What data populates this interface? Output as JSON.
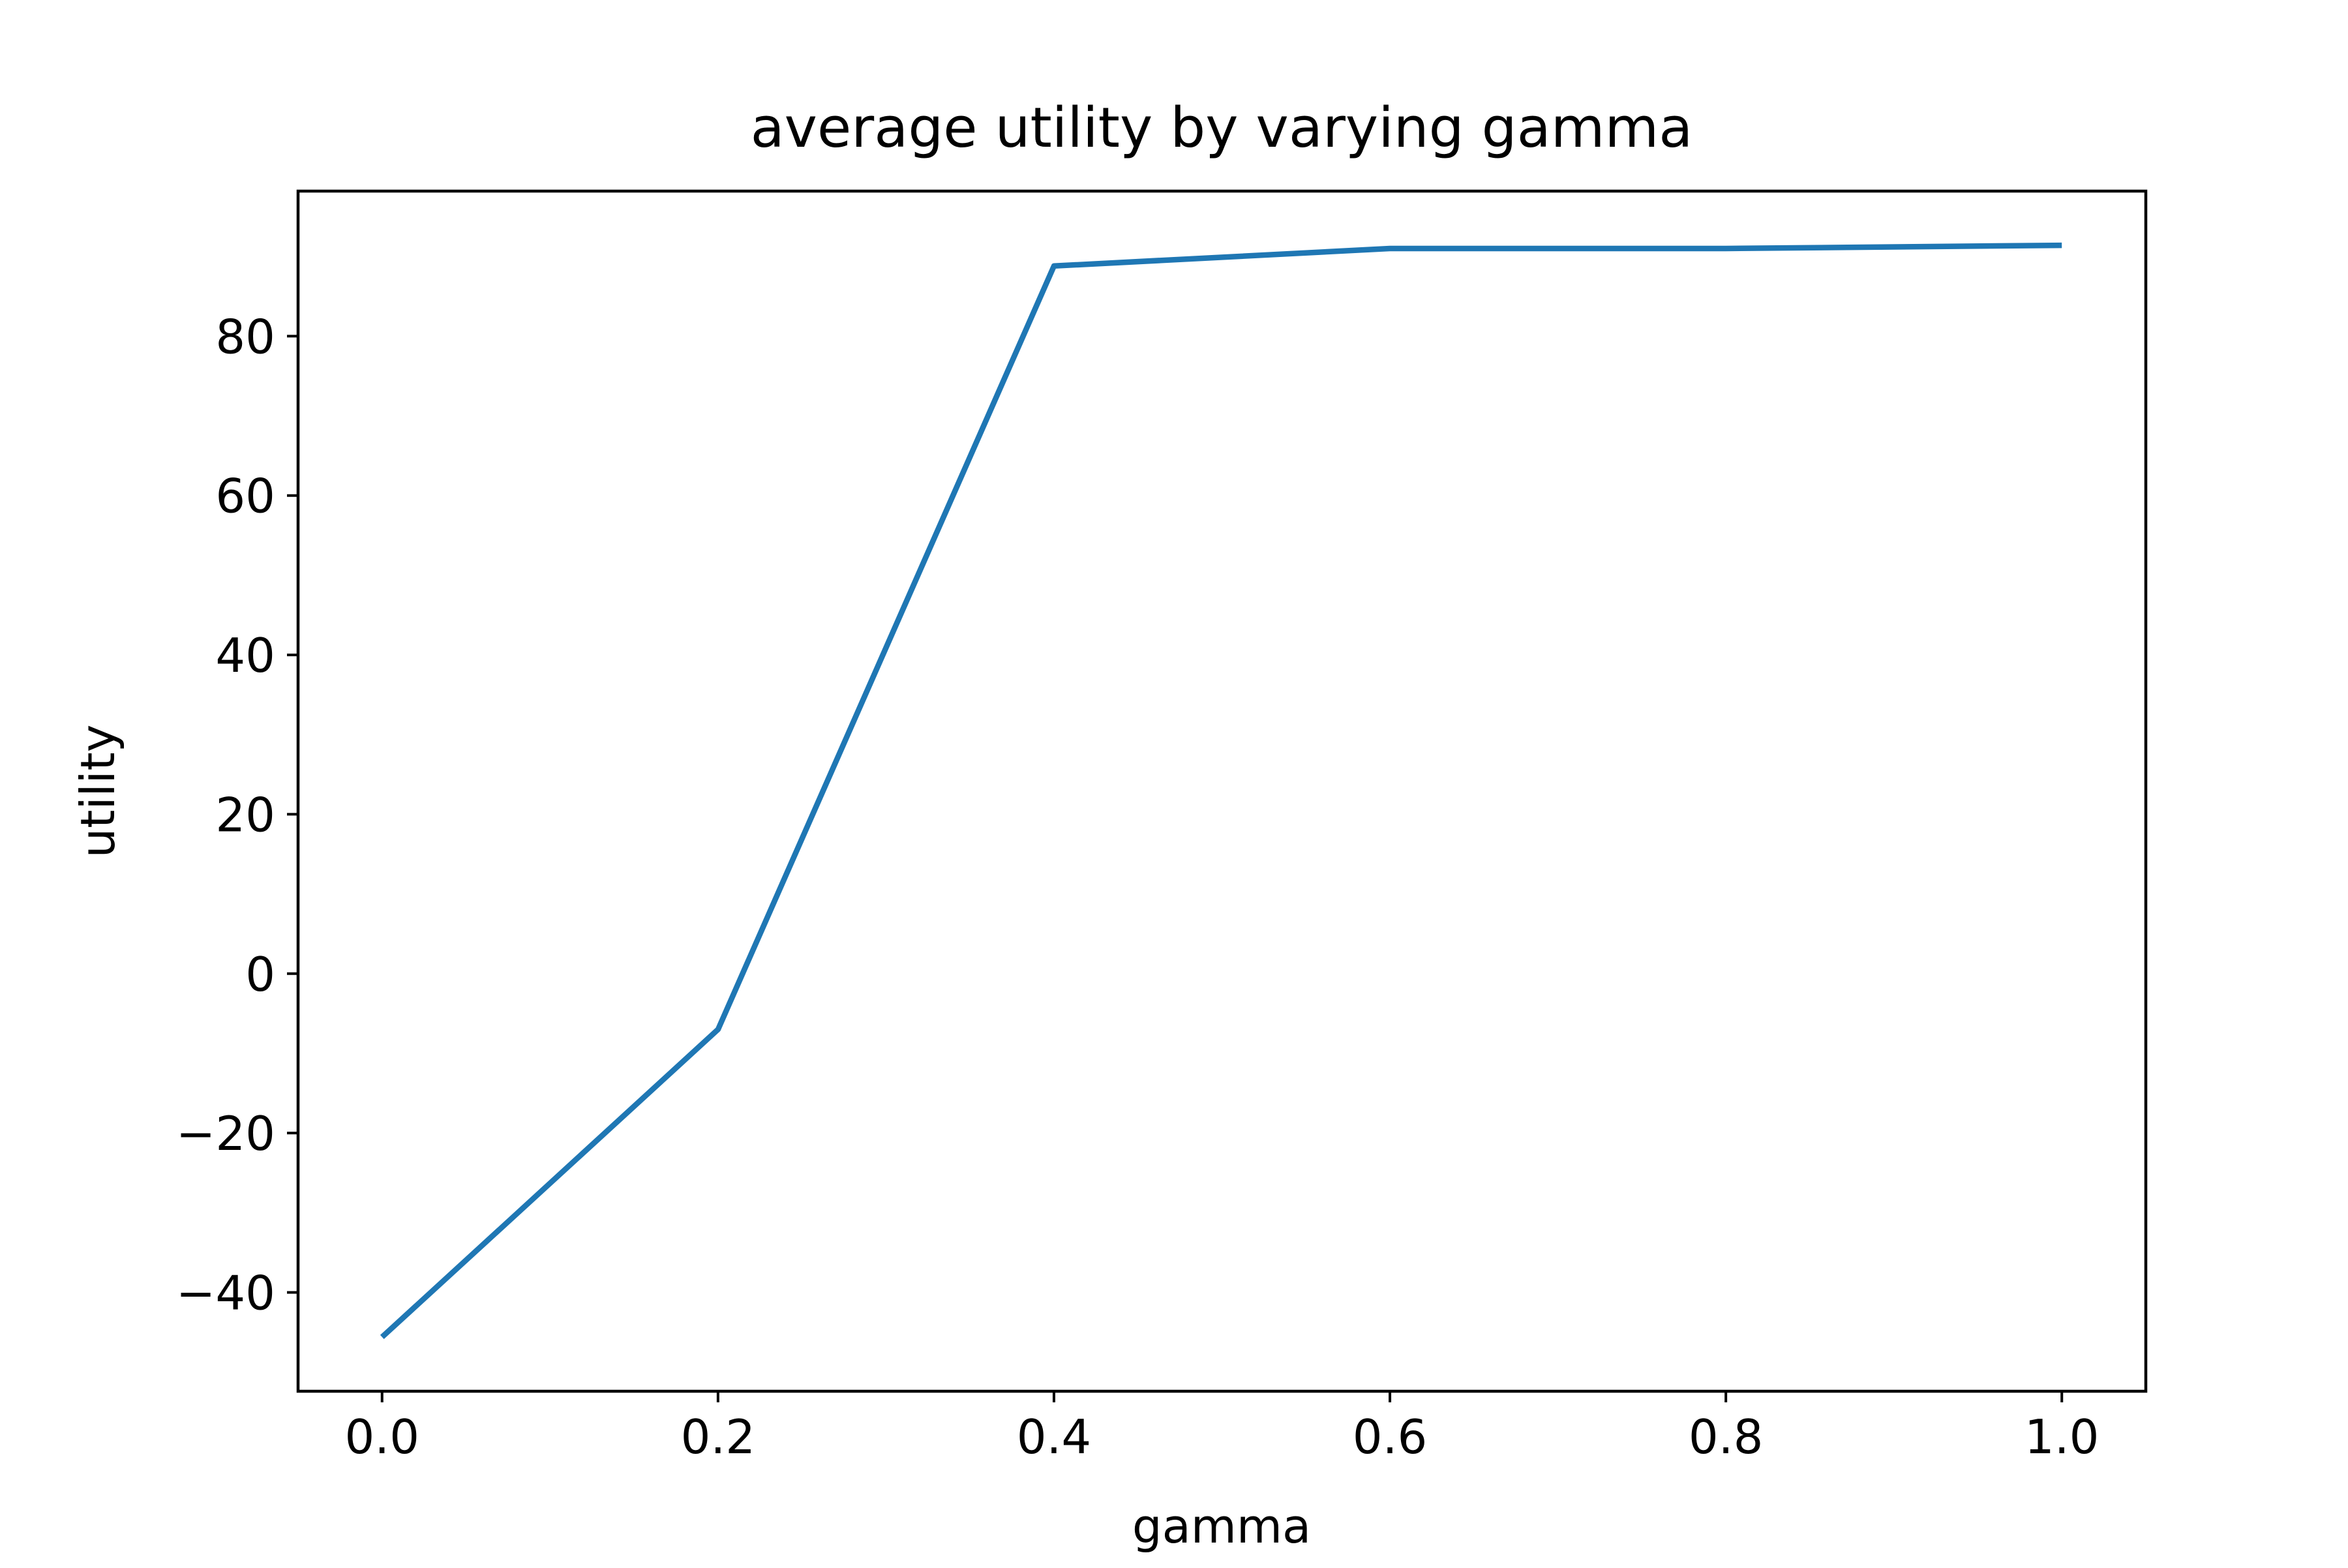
{
  "chart_data": {
    "type": "line",
    "title": "average utility by varying gamma",
    "xlabel": "gamma",
    "ylabel": "utility",
    "x": [
      0.0,
      0.2,
      0.4,
      0.6,
      0.8,
      1.0
    ],
    "series": [
      {
        "values": [
          -45.6,
          -7.0,
          88.8,
          91.0,
          91.0,
          91.4
        ],
        "color": "#1f77b4"
      }
    ],
    "xlim": [
      -0.05,
      1.05
    ],
    "ylim": [
      -52.4,
      98.2
    ],
    "xticks": [
      0.0,
      0.2,
      0.4,
      0.6,
      0.8,
      1.0
    ],
    "xtick_labels": [
      "0.0",
      "0.2",
      "0.4",
      "0.6",
      "0.8",
      "1.0"
    ],
    "yticks": [
      -40,
      -20,
      0,
      20,
      40,
      60,
      80
    ],
    "ytick_labels": [
      "−40",
      "−20",
      "0",
      "20",
      "40",
      "60",
      "80"
    ],
    "grid": false,
    "legend": false
  }
}
